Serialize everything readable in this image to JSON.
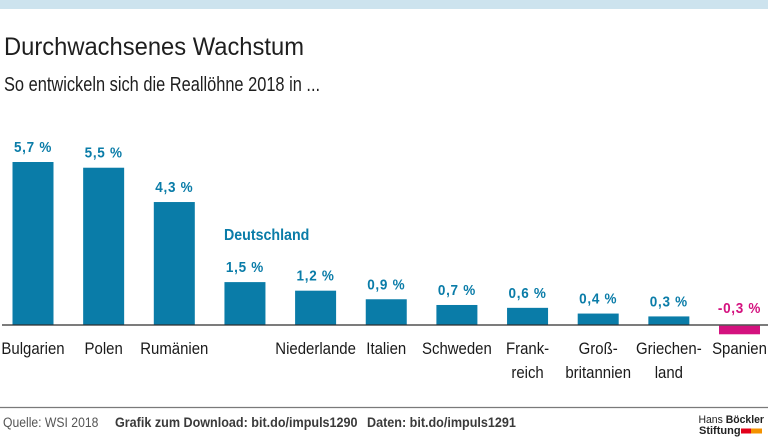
{
  "colors": {
    "top_band": "#cde3ee",
    "positive": "#0a7ca8",
    "negative": "#d4127f",
    "logo_red": "#e2001a",
    "logo_orange": "#f39200"
  },
  "chart_data": {
    "type": "bar",
    "title": "Durchwachsenes Wachstum",
    "subtitle": "So entwickeln sich die Reallöhne 2018 in ...",
    "xlabel": "",
    "ylabel": "",
    "unit": "%",
    "ylim": [
      -0.3,
      5.7
    ],
    "grid": false,
    "legend": "none",
    "categories": [
      "Bulgarien",
      "Polen",
      "Rumänien",
      "Deutschland",
      "Niederlande",
      "Italien",
      "Schweden",
      "Frankreich",
      "Großbritannien",
      "Griechenland",
      "Spanien"
    ],
    "values": [
      5.7,
      5.5,
      4.3,
      1.5,
      1.2,
      0.9,
      0.7,
      0.6,
      0.4,
      0.3,
      -0.3
    ],
    "value_labels": [
      "5,7 %",
      "5,5 %",
      "4,3 %",
      "1,5 %",
      "1,2 %",
      "0,9 %",
      "0,7 %",
      "0,6 %",
      "0,4 %",
      "0,3 %",
      "-0,3 %"
    ],
    "axis_labels": [
      [
        "Bulgarien"
      ],
      [
        "Polen"
      ],
      [
        "Rumänien"
      ],
      [],
      [
        "Niederlande"
      ],
      [
        "Italien"
      ],
      [
        "Schweden"
      ],
      [
        "Frank-",
        "reich"
      ],
      [
        "Groß-",
        "britannien"
      ],
      [
        "Griechen-",
        "land"
      ],
      [
        "Spanien"
      ]
    ],
    "annotation": {
      "category": "Deutschland",
      "text": "Deutschland"
    }
  },
  "footer": {
    "source": "Quelle: WSI 2018",
    "download": "Grafik zum Download: bit.do/impuls1290",
    "data": "Daten: bit.do/impuls1291"
  },
  "logo": {
    "line1_regular": "Hans",
    "line1_bold": "Böckler",
    "line2": "Stiftung"
  }
}
